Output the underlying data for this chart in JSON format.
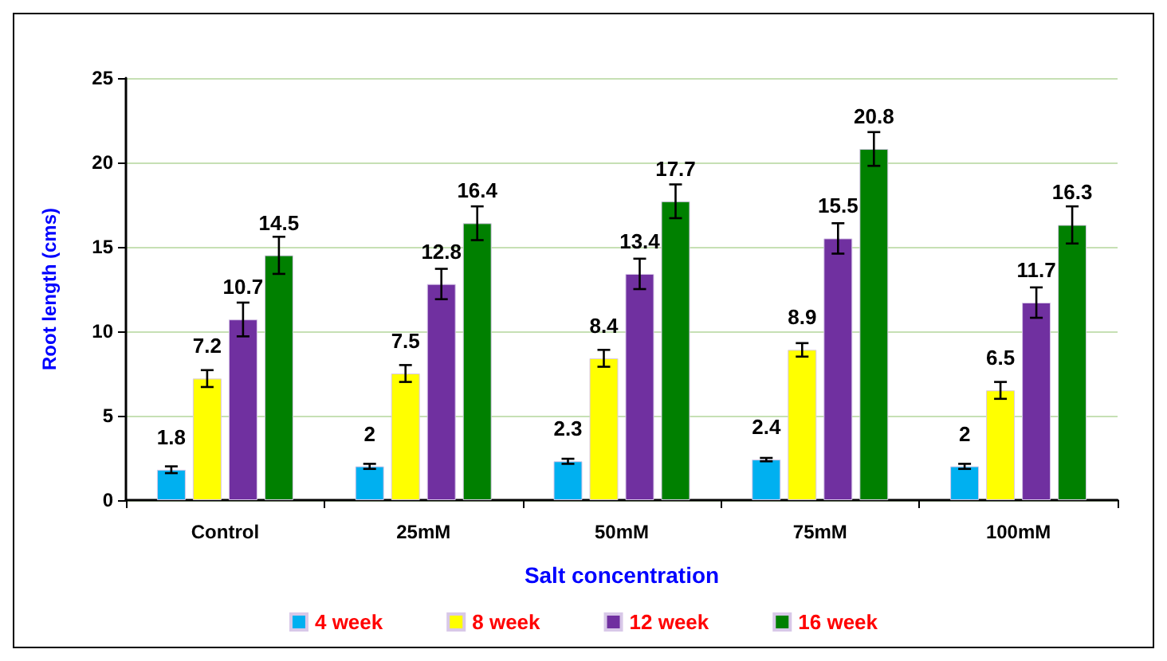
{
  "chart_data": {
    "type": "bar",
    "xlabel": "Salt concentration",
    "ylabel": "Root length (cms)",
    "categories": [
      "Control",
      "25mM",
      "50mM",
      "75mM",
      "100mM"
    ],
    "series": [
      {
        "name": "4 week",
        "color": "#00b0f0",
        "values": [
          1.8,
          2,
          2.3,
          2.4,
          2
        ],
        "errors": [
          0.2,
          0.15,
          0.15,
          0.1,
          0.15
        ]
      },
      {
        "name": "8 week",
        "color": "#ffff00",
        "values": [
          7.2,
          7.5,
          8.4,
          8.9,
          6.5
        ],
        "errors": [
          0.5,
          0.5,
          0.5,
          0.4,
          0.5
        ]
      },
      {
        "name": "12 week",
        "color": "#7030a0",
        "values": [
          10.7,
          12.8,
          13.4,
          15.5,
          11.7
        ],
        "errors": [
          1,
          0.9,
          0.9,
          0.9,
          0.9
        ]
      },
      {
        "name": "16 week",
        "color": "#008000",
        "values": [
          14.5,
          16.4,
          17.7,
          20.8,
          16.3
        ],
        "errors": [
          1.1,
          1,
          1,
          1,
          1.1
        ]
      }
    ],
    "ylim": [
      0,
      25
    ],
    "yticks": [
      0,
      5,
      10,
      15,
      20,
      25
    ],
    "grid": "y",
    "legend": "bottom",
    "data_labels": true
  }
}
